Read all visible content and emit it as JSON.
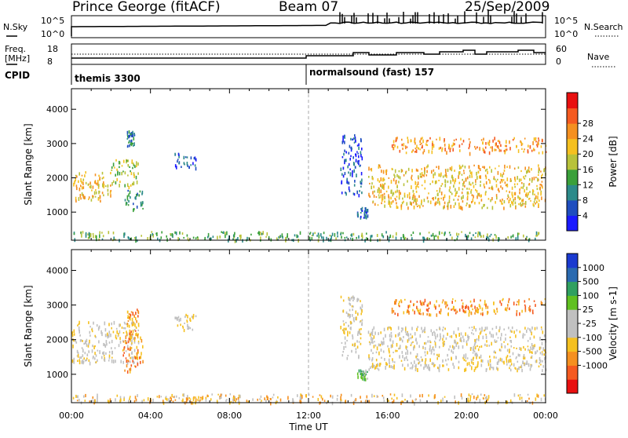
{
  "header": {
    "station": "Prince George (fitACF)",
    "beam": "Beam 07",
    "date": "25/Sep/2009"
  },
  "strip": {
    "nsky_label": "N.Sky",
    "nsky_top": "10^5",
    "nsky_bottom": "10^0",
    "nsearch_label": "N.Search",
    "nsearch_top": "10^5",
    "nsearch_bottom": "10^0",
    "freq_label_1": "Freq.",
    "freq_label_2": "[MHz]",
    "freq_top": "18",
    "freq_bottom": "8",
    "nave_label": "Nave",
    "nave_top": "60",
    "nave_bottom": "0",
    "cpid_label": "CPID",
    "cpid_1": "themis 3300",
    "cpid_2": "normalsound (fast) 157"
  },
  "colors": {
    "power": [
      "#1a1aff",
      "#1f4ebf",
      "#2c8a8a",
      "#3aa03a",
      "#b8c23a",
      "#f5c020",
      "#f59020",
      "#f55a20",
      "#e81010"
    ],
    "velocity": [
      "#e81010",
      "#f55a20",
      "#f59020",
      "#f5c020",
      "#c0c0c0",
      "#c0c0c0",
      "#60c020",
      "#30a060",
      "#2a6ab0",
      "#1a3ad0"
    ]
  },
  "chart_data": [
    {
      "type": "heatmap",
      "name": "power",
      "xlabel": "",
      "ylabel": "Slant Range [km]",
      "xlim": [
        0,
        24
      ],
      "ylim": [
        180,
        4600
      ],
      "yticks": [
        "1000",
        "2000",
        "3000",
        "4000"
      ],
      "colorbar_label": "Power [dB]",
      "colorbar_ticks": [
        "4",
        "8",
        "12",
        "16",
        "20",
        "24",
        "28"
      ],
      "vline_ut": 12,
      "regions": [
        {
          "t0": 0.0,
          "t1": 2.0,
          "r0": 1350,
          "r1": 2200,
          "level": 5
        },
        {
          "t0": 2.0,
          "t1": 3.4,
          "r0": 1750,
          "r1": 2550,
          "level": 4
        },
        {
          "t0": 2.6,
          "t1": 3.6,
          "r0": 1100,
          "r1": 1700,
          "level": 2
        },
        {
          "t0": 2.8,
          "t1": 3.2,
          "r0": 2900,
          "r1": 3400,
          "level": 2
        },
        {
          "t0": 5.2,
          "t1": 6.3,
          "r0": 2300,
          "r1": 2750,
          "level": 1
        },
        {
          "t0": 13.6,
          "t1": 14.7,
          "r0": 1500,
          "r1": 3300,
          "level": 1
        },
        {
          "t0": 14.4,
          "t1": 15.0,
          "r0": 850,
          "r1": 1150,
          "level": 1
        },
        {
          "t0": 15.0,
          "t1": 24.0,
          "r0": 1150,
          "r1": 2400,
          "level": 5
        },
        {
          "t0": 16.2,
          "t1": 24.0,
          "r0": 2750,
          "r1": 3200,
          "level": 6
        },
        {
          "t0": 0.0,
          "t1": 24.0,
          "r0": 200,
          "r1": 450,
          "level": 3
        }
      ]
    },
    {
      "type": "heatmap",
      "name": "velocity",
      "xlabel": "Time UT",
      "ylabel": "Slant Range [km]",
      "xlim": [
        0,
        24
      ],
      "ylim": [
        180,
        4600
      ],
      "xticks": [
        "00:00",
        "04:00",
        "08:00",
        "12:00",
        "16:00",
        "20:00",
        "00:00"
      ],
      "yticks": [
        "1000",
        "2000",
        "3000",
        "4000"
      ],
      "colorbar_label": "Velocity [m s-1]",
      "colorbar_ticks": [
        "1000",
        "500",
        "100",
        "25",
        "-25",
        "-100",
        "-500",
        "-1000"
      ],
      "vline_ut": 12,
      "regions": [
        {
          "t0": 0.0,
          "t1": 3.4,
          "r0": 1350,
          "r1": 2550,
          "level": 4
        },
        {
          "t0": 2.6,
          "t1": 3.6,
          "r0": 1100,
          "r1": 2300,
          "level": 2
        },
        {
          "t0": 2.8,
          "t1": 3.4,
          "r0": 2400,
          "r1": 2900,
          "level": 2
        },
        {
          "t0": 5.2,
          "t1": 6.3,
          "r0": 2300,
          "r1": 2750,
          "level": 4
        },
        {
          "t0": 13.6,
          "t1": 14.7,
          "r0": 1500,
          "r1": 3300,
          "level": 4
        },
        {
          "t0": 14.4,
          "t1": 15.0,
          "r0": 850,
          "r1": 1150,
          "level": 6
        },
        {
          "t0": 15.0,
          "t1": 24.0,
          "r0": 1150,
          "r1": 2400,
          "level": 4
        },
        {
          "t0": 16.2,
          "t1": 24.0,
          "r0": 2750,
          "r1": 3200,
          "level": 2
        },
        {
          "t0": 0.0,
          "t1": 24.0,
          "r0": 200,
          "r1": 450,
          "level": 3
        }
      ]
    }
  ]
}
